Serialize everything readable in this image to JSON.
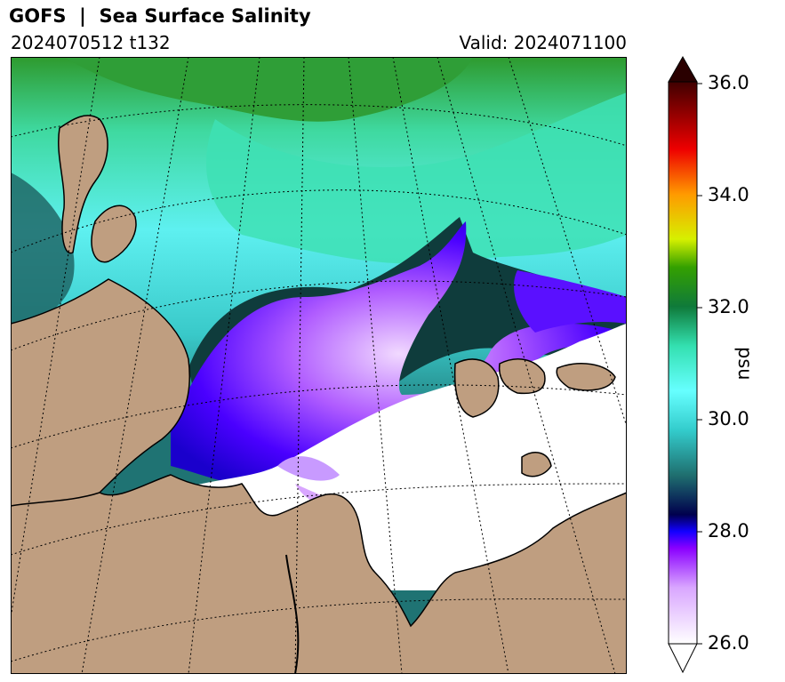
{
  "header": {
    "title": "GOFS  |  Sea Surface Salinity",
    "run": "2024070512 t132",
    "valid": "Valid: 2024071100"
  },
  "colorbar": {
    "unit": "psu",
    "ticks": [
      "26.0",
      "28.0",
      "30.0",
      "32.0",
      "34.0",
      "36.0"
    ],
    "min": 26.0,
    "max": 36.0,
    "extend": "both"
  },
  "map": {
    "land_color": "#bf9e80",
    "graticule": "dotted",
    "colormap_stops": [
      "#ffffff",
      "#d9a6ff",
      "#8a00ff",
      "#1200ff",
      "#00004d",
      "#1f6f6f",
      "#33cccc",
      "#66ffff",
      "#33e0b0",
      "#0f7a3a",
      "#34a000",
      "#d6f000",
      "#ff9a00",
      "#ee0000",
      "#400000"
    ]
  }
}
